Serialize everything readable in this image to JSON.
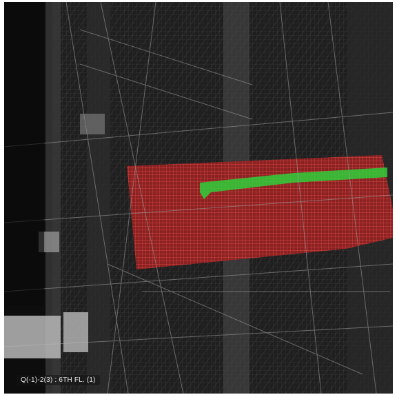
{
  "viewer": {
    "selection_label": "Q(-1)-2(3) : 6TH FL. (1)"
  },
  "colors": {
    "background": "#0d0d0d",
    "structure_wire": "#8a8a8a",
    "highlight_floor": "#d83a3a",
    "highlight_path": "#35d23a",
    "panel": "#b9b9b9"
  }
}
